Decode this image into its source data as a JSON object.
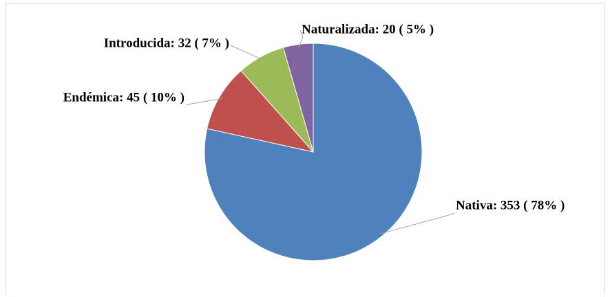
{
  "chart_data": {
    "type": "pie",
    "categories": [
      "Nativa",
      "Endémica",
      "Introducida",
      "Naturalizada"
    ],
    "values": [
      353,
      45,
      32,
      20
    ],
    "value_labels": [
      "Nativa: 353  ( 78% )",
      "Endémica: 45 ( 10% )",
      "Introducida: 32  ( 7% )",
      "Naturalizada: 20 ( 5% )"
    ],
    "colors": [
      "#4f81bd",
      "#c0504d",
      "#9bbb59",
      "#8064a2"
    ]
  }
}
